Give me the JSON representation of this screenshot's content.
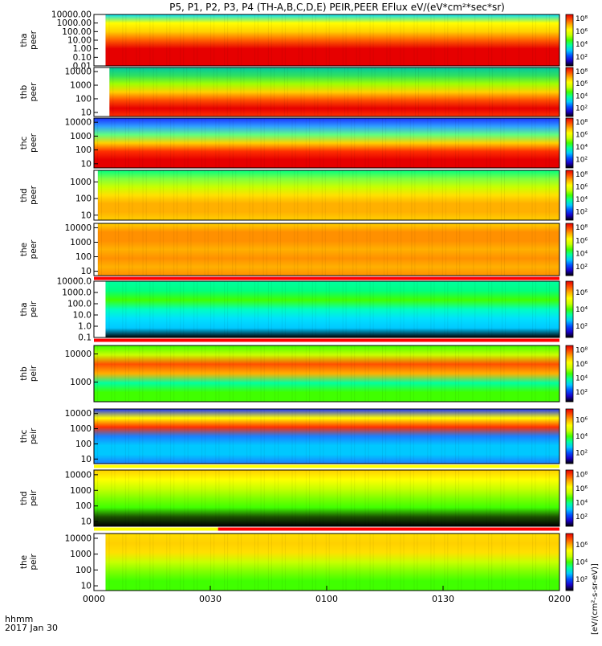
{
  "chart_data": {
    "type": "heatmap",
    "title": "P5, P1, P2, P3, P4 (TH-A,B,C,D,E) PEIR,PEER EFlux eV/(eV*cm²*sec*sr)",
    "x_axis": {
      "label_lines": [
        "hhmm",
        "2017 Jan 30"
      ],
      "ticks": [
        "0000",
        "0030",
        "0100",
        "0130",
        "0200"
      ],
      "tick_minutes": [
        0,
        30,
        60,
        90,
        120
      ],
      "range_minutes": [
        0,
        120
      ]
    },
    "colorbar_label": "[eV/(cm²-s-sr-eV)]",
    "colorbar_label_full": "[eV/(cm²-s-sr-eV)] / eV/(eV*cm^2*sec*sr)",
    "panels": [
      {
        "probe": "tha",
        "species": "peer",
        "log_y": true,
        "y_ticks": [
          "10000.00",
          "1000.00",
          "100.00",
          "10.00",
          "1.00",
          "0.10",
          "0.01"
        ],
        "data_start_minute": 3,
        "flags": [],
        "cbar_ticks": [
          "10⁸",
          "10⁶",
          "10⁴",
          "10²"
        ]
      },
      {
        "probe": "thb",
        "species": "peer",
        "log_y": true,
        "y_ticks": [
          "10000",
          "1000",
          "100",
          "10"
        ],
        "data_start_minute": 4,
        "flags": [],
        "cbar_ticks": [
          "10⁸",
          "10⁶",
          "10⁴",
          "10²"
        ]
      },
      {
        "probe": "thc",
        "species": "peer",
        "log_y": true,
        "y_ticks": [
          "10000",
          "1000",
          "100",
          "10"
        ],
        "data_start_minute": 0,
        "flags": [],
        "cbar_ticks": [
          "10⁸",
          "10⁶",
          "10⁴",
          "10²"
        ]
      },
      {
        "probe": "thd",
        "species": "peer",
        "log_y": true,
        "y_ticks": [
          "1000",
          "100",
          "10"
        ],
        "data_start_minute": 1,
        "flags": [],
        "cbar_ticks": [
          "10⁸",
          "10⁶",
          "10⁴",
          "10²"
        ]
      },
      {
        "probe": "the",
        "species": "peer",
        "log_y": true,
        "y_ticks": [
          "10000",
          "1000",
          "100",
          "10"
        ],
        "data_start_minute": 1,
        "flags": [
          {
            "start_minute": 0,
            "end_minute": 120,
            "color": "#ff0000"
          }
        ],
        "cbar_ticks": [
          "10⁸",
          "10⁶",
          "10⁴",
          "10²"
        ]
      },
      {
        "probe": "tha",
        "species": "peir",
        "log_y": true,
        "y_ticks": [
          "10000.0",
          "1000.0",
          "100.0",
          "10.0",
          "1.0",
          "0.1"
        ],
        "data_start_minute": 3,
        "flags": [
          {
            "start_minute": 0,
            "end_minute": 120,
            "color": "#ff0000"
          }
        ],
        "cbar_ticks": [
          "10⁶",
          "10⁴",
          "10²"
        ]
      },
      {
        "probe": "thb",
        "species": "peir",
        "log_y": true,
        "y_ticks": [
          "10000",
          "1000"
        ],
        "data_start_minute": 0,
        "flags": [],
        "cbar_ticks": [
          "10⁸",
          "10⁶",
          "10⁴",
          "10²"
        ]
      },
      {
        "probe": "thc",
        "species": "peir",
        "log_y": true,
        "y_ticks": [
          "10000",
          "1000",
          "100",
          "10"
        ],
        "data_start_minute": 0,
        "flags": [
          {
            "start_minute": 0,
            "end_minute": 120,
            "color": "#ffff00"
          }
        ],
        "cbar_ticks": [
          "10⁶",
          "10⁴",
          "10²"
        ]
      },
      {
        "probe": "thd",
        "species": "peir",
        "log_y": true,
        "y_ticks": [
          "10000",
          "1000",
          "100",
          "10"
        ],
        "data_start_minute": 0,
        "flags": [
          {
            "start_minute": 0,
            "end_minute": 32,
            "color": "#ffff00"
          },
          {
            "start_minute": 32,
            "end_minute": 120,
            "color": "#ff0000"
          }
        ],
        "cbar_ticks": [
          "10⁸",
          "10⁶",
          "10⁴",
          "10²"
        ]
      },
      {
        "probe": "the",
        "species": "peir",
        "log_y": true,
        "y_ticks": [
          "10000",
          "1000",
          "100",
          "10"
        ],
        "data_start_minute": 3,
        "flags": [],
        "cbar_ticks": [
          "10⁶",
          "10⁴",
          "10²"
        ]
      }
    ],
    "colorscale": [
      "#000000",
      "#1a00c8",
      "#0050ff",
      "#00c8ff",
      "#00ffa0",
      "#40ff00",
      "#c8ff00",
      "#ffff00",
      "#ffb000",
      "#ff5000",
      "#e60000"
    ]
  }
}
